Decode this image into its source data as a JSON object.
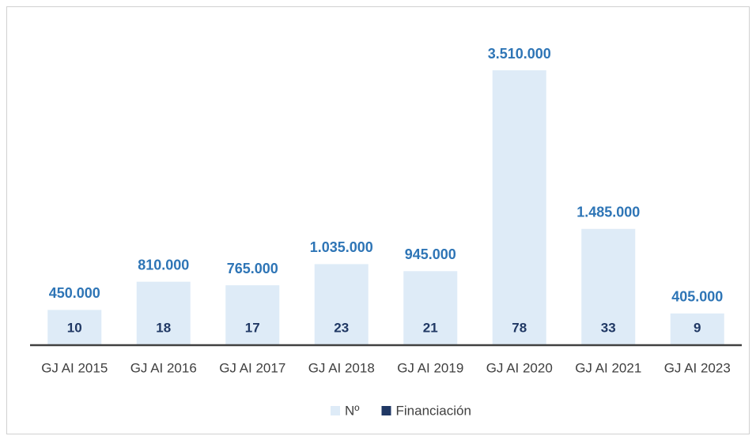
{
  "chart_data": {
    "type": "bar",
    "categories": [
      "GJ AI 2015",
      "GJ AI 2016",
      "GJ AI 2017",
      "GJ AI 2018",
      "GJ AI 2019",
      "GJ AI 2020",
      "GJ AI 2021",
      "GJ AI 2023"
    ],
    "series": [
      {
        "name": "Nº",
        "color": "#deebf7",
        "values": [
          10,
          18,
          17,
          23,
          21,
          78,
          33,
          9
        ]
      },
      {
        "name": "Financiación",
        "color": "#203864",
        "values": [
          450000,
          810000,
          765000,
          1035000,
          945000,
          3510000,
          1485000,
          405000
        ],
        "value_labels": [
          "450.000",
          "810.000",
          "765.000",
          "1.035.000",
          "945.000",
          "3.510.000",
          "1.485.000",
          "405.000"
        ]
      }
    ]
  }
}
